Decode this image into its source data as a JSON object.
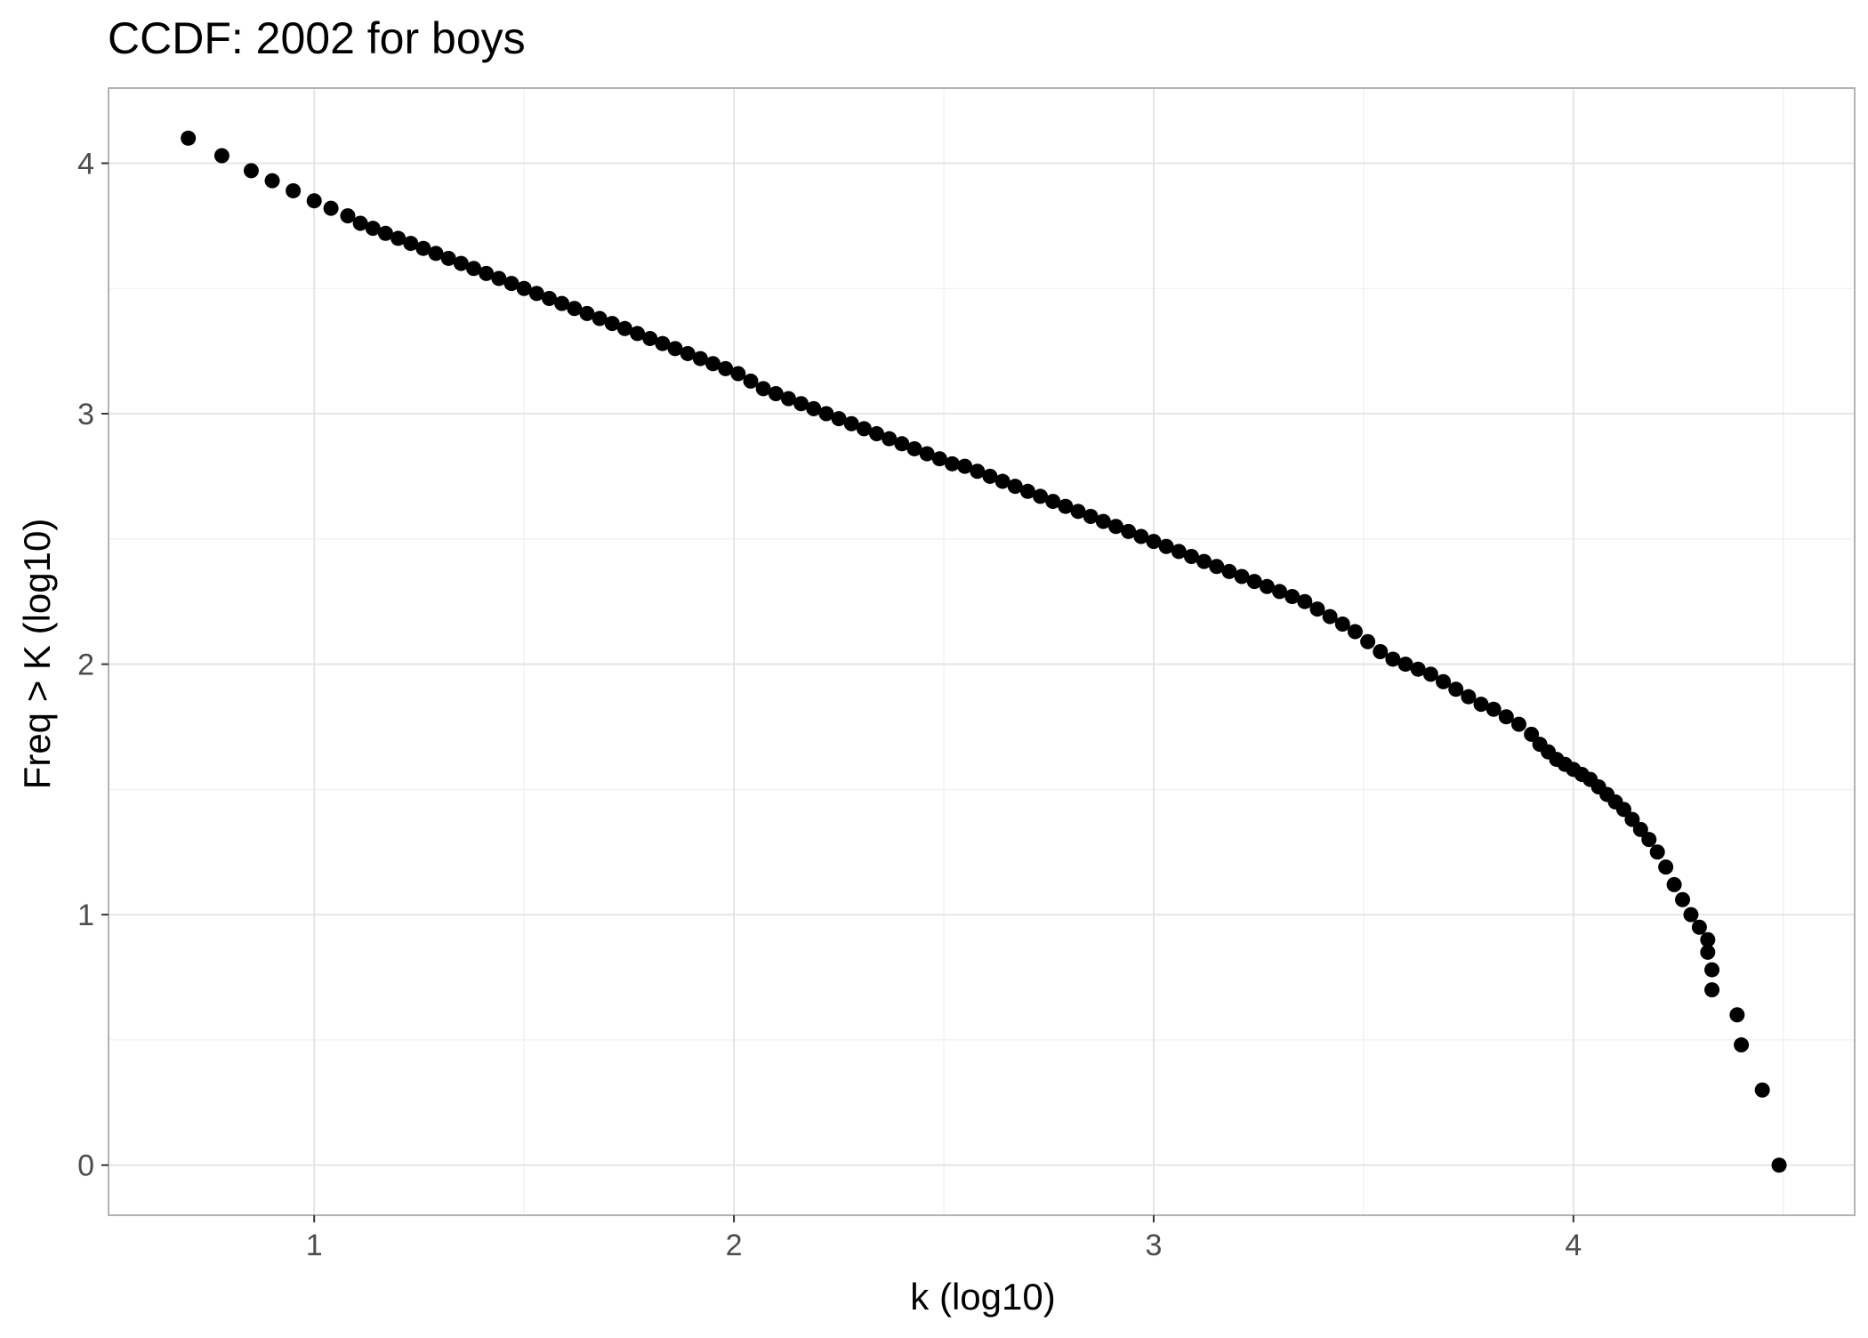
{
  "chart_data": {
    "type": "scatter",
    "title": "CCDF: 2002 for boys",
    "xlabel": "k (log10)",
    "ylabel": "Freq > K (log10)",
    "xlim": [
      0.51,
      4.67
    ],
    "ylim": [
      -0.2,
      4.3
    ],
    "x_ticks": [
      1,
      2,
      3,
      4
    ],
    "y_ticks": [
      0,
      1,
      2,
      3,
      4
    ],
    "x_minor": [
      1.5,
      2.5,
      3.5,
      4.5
    ],
    "y_minor": [
      0.5,
      1.5,
      2.5,
      3.5
    ],
    "grid": true,
    "point_color": "#000000",
    "series": [
      {
        "points": [
          [
            0.7,
            4.1
          ],
          [
            0.78,
            4.03
          ],
          [
            0.85,
            3.97
          ],
          [
            0.9,
            3.93
          ],
          [
            0.95,
            3.89
          ],
          [
            1.0,
            3.85
          ],
          [
            1.04,
            3.82
          ],
          [
            1.08,
            3.79
          ],
          [
            1.11,
            3.76
          ],
          [
            1.14,
            3.74
          ],
          [
            1.17,
            3.72
          ],
          [
            1.2,
            3.7
          ],
          [
            1.23,
            3.68
          ],
          [
            1.26,
            3.66
          ],
          [
            1.29,
            3.64
          ],
          [
            1.32,
            3.62
          ],
          [
            1.35,
            3.6
          ],
          [
            1.38,
            3.58
          ],
          [
            1.41,
            3.56
          ],
          [
            1.44,
            3.54
          ],
          [
            1.47,
            3.52
          ],
          [
            1.5,
            3.5
          ],
          [
            1.53,
            3.48
          ],
          [
            1.56,
            3.46
          ],
          [
            1.59,
            3.44
          ],
          [
            1.62,
            3.42
          ],
          [
            1.65,
            3.4
          ],
          [
            1.68,
            3.38
          ],
          [
            1.71,
            3.36
          ],
          [
            1.74,
            3.34
          ],
          [
            1.77,
            3.32
          ],
          [
            1.8,
            3.3
          ],
          [
            1.83,
            3.28
          ],
          [
            1.86,
            3.26
          ],
          [
            1.89,
            3.24
          ],
          [
            1.92,
            3.22
          ],
          [
            1.95,
            3.2
          ],
          [
            1.98,
            3.18
          ],
          [
            2.01,
            3.16
          ],
          [
            2.04,
            3.13
          ],
          [
            2.07,
            3.1
          ],
          [
            2.1,
            3.08
          ],
          [
            2.13,
            3.06
          ],
          [
            2.16,
            3.04
          ],
          [
            2.19,
            3.02
          ],
          [
            2.22,
            3.0
          ],
          [
            2.25,
            2.98
          ],
          [
            2.28,
            2.96
          ],
          [
            2.31,
            2.94
          ],
          [
            2.34,
            2.92
          ],
          [
            2.37,
            2.9
          ],
          [
            2.4,
            2.88
          ],
          [
            2.43,
            2.86
          ],
          [
            2.46,
            2.84
          ],
          [
            2.49,
            2.82
          ],
          [
            2.52,
            2.8
          ],
          [
            2.55,
            2.79
          ],
          [
            2.58,
            2.77
          ],
          [
            2.61,
            2.75
          ],
          [
            2.64,
            2.73
          ],
          [
            2.67,
            2.71
          ],
          [
            2.7,
            2.69
          ],
          [
            2.73,
            2.67
          ],
          [
            2.76,
            2.65
          ],
          [
            2.79,
            2.63
          ],
          [
            2.82,
            2.61
          ],
          [
            2.85,
            2.59
          ],
          [
            2.88,
            2.57
          ],
          [
            2.91,
            2.55
          ],
          [
            2.94,
            2.53
          ],
          [
            2.97,
            2.51
          ],
          [
            3.0,
            2.49
          ],
          [
            3.03,
            2.47
          ],
          [
            3.06,
            2.45
          ],
          [
            3.09,
            2.43
          ],
          [
            3.12,
            2.41
          ],
          [
            3.15,
            2.39
          ],
          [
            3.18,
            2.37
          ],
          [
            3.21,
            2.35
          ],
          [
            3.24,
            2.33
          ],
          [
            3.27,
            2.31
          ],
          [
            3.3,
            2.29
          ],
          [
            3.33,
            2.27
          ],
          [
            3.36,
            2.25
          ],
          [
            3.39,
            2.22
          ],
          [
            3.42,
            2.19
          ],
          [
            3.45,
            2.16
          ],
          [
            3.48,
            2.13
          ],
          [
            3.51,
            2.09
          ],
          [
            3.54,
            2.05
          ],
          [
            3.57,
            2.02
          ],
          [
            3.6,
            2.0
          ],
          [
            3.63,
            1.98
          ],
          [
            3.66,
            1.96
          ],
          [
            3.69,
            1.93
          ],
          [
            3.72,
            1.9
          ],
          [
            3.75,
            1.87
          ],
          [
            3.78,
            1.84
          ],
          [
            3.81,
            1.82
          ],
          [
            3.84,
            1.79
          ],
          [
            3.87,
            1.76
          ],
          [
            3.9,
            1.72
          ],
          [
            3.92,
            1.68
          ],
          [
            3.94,
            1.65
          ],
          [
            3.96,
            1.62
          ],
          [
            3.98,
            1.6
          ],
          [
            4.0,
            1.58
          ],
          [
            4.02,
            1.56
          ],
          [
            4.04,
            1.54
          ],
          [
            4.06,
            1.51
          ],
          [
            4.08,
            1.48
          ],
          [
            4.1,
            1.45
          ],
          [
            4.12,
            1.42
          ],
          [
            4.14,
            1.38
          ],
          [
            4.16,
            1.34
          ],
          [
            4.18,
            1.3
          ],
          [
            4.2,
            1.25
          ],
          [
            4.22,
            1.19
          ],
          [
            4.24,
            1.12
          ],
          [
            4.26,
            1.06
          ],
          [
            4.28,
            1.0
          ],
          [
            4.3,
            0.95
          ],
          [
            4.32,
            0.9
          ],
          [
            4.32,
            0.85
          ],
          [
            4.33,
            0.78
          ],
          [
            4.33,
            0.7
          ],
          [
            4.39,
            0.6
          ],
          [
            4.4,
            0.48
          ],
          [
            4.45,
            0.3
          ],
          [
            4.49,
            0.0
          ]
        ]
      }
    ]
  }
}
